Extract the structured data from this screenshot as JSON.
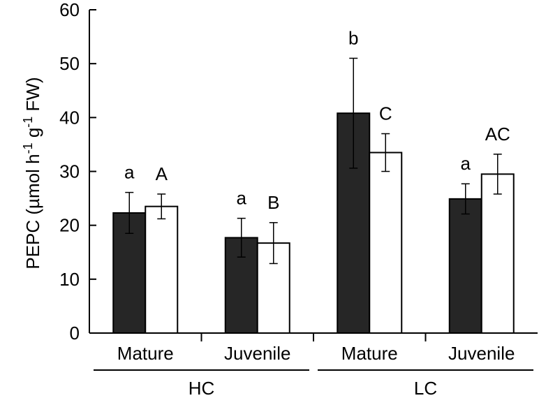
{
  "chart_data": {
    "type": "bar",
    "ylabel_parts": [
      "PEPC (µmol h",
      "-1",
      " g",
      "-1",
      " FW)"
    ],
    "ylim": [
      0,
      60
    ],
    "yticks": [
      "0",
      "10",
      "20",
      "30",
      "40",
      "50",
      "60"
    ],
    "categories": [
      "Mature",
      "Juvenile",
      "Mature",
      "Juvenile"
    ],
    "groups": [
      "HC",
      "LC"
    ],
    "series": [
      {
        "color": "#262626",
        "values": [
          22.3,
          17.7,
          40.8,
          24.9
        ],
        "errors": [
          3.8,
          3.6,
          10.2,
          2.8
        ],
        "labels": [
          "a",
          "a",
          "b",
          "a"
        ]
      },
      {
        "color": "#ffffff",
        "values": [
          23.5,
          16.7,
          33.5,
          29.5
        ],
        "errors": [
          2.3,
          3.8,
          3.5,
          3.7
        ],
        "labels": [
          "A",
          "B",
          "C",
          "AC"
        ]
      }
    ],
    "grid": false,
    "legend": "none"
  }
}
